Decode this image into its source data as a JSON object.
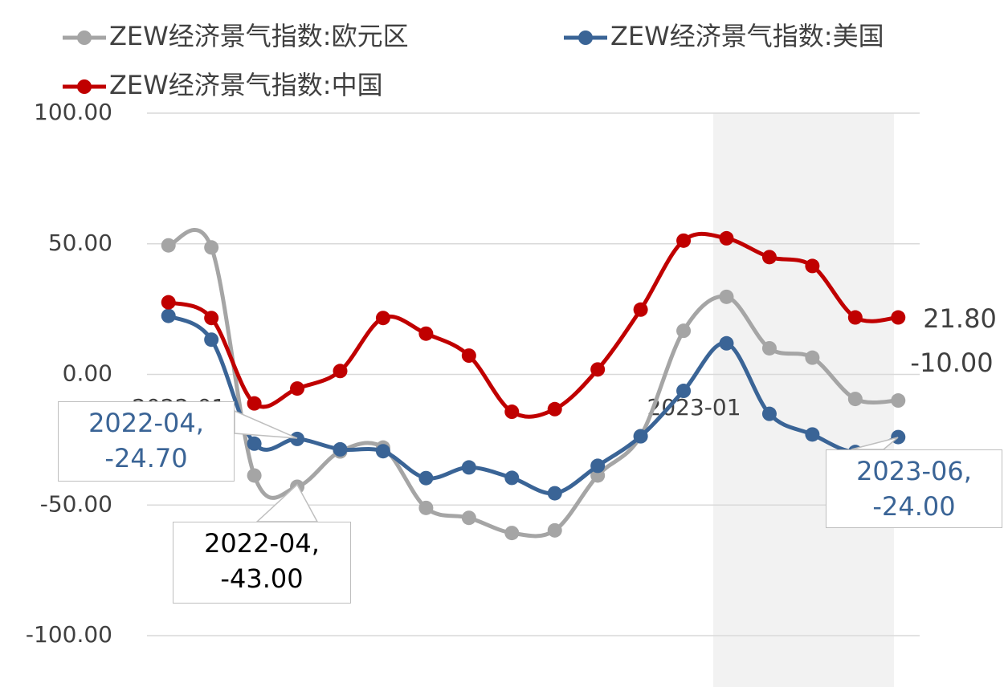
{
  "chart_data": {
    "type": "line",
    "categories": [
      "2022-01",
      null,
      null,
      null,
      null,
      null,
      null,
      null,
      null,
      null,
      null,
      null,
      "2023-01",
      null,
      null,
      null,
      null,
      null
    ],
    "series": [
      {
        "name": "ZEW经济景气指数:欧元区",
        "color": "#a5a5a5",
        "values": [
          49.4,
          48.6,
          -38.7,
          -43.0,
          -29.5,
          -28.0,
          -51.1,
          -54.9,
          -60.7,
          -59.7,
          -38.7,
          -23.6,
          16.7,
          29.7,
          10.0,
          6.4,
          -9.4,
          -10.0
        ],
        "value_labels": [
          null,
          null,
          null,
          "2022-04, -43.00",
          null,
          null,
          null,
          null,
          null,
          null,
          null,
          null,
          null,
          null,
          null,
          null,
          null,
          "-10.00"
        ]
      },
      {
        "name": "ZEW经济景气指数:美国",
        "color": "#3a6496",
        "values": [
          22.4,
          13.3,
          -26.5,
          -24.7,
          -28.7,
          -29.4,
          -39.7,
          -35.6,
          -39.6,
          -45.5,
          -35.0,
          -23.7,
          -6.3,
          11.9,
          -15.1,
          -23.0,
          -29.7,
          -24.0
        ],
        "value_labels": [
          null,
          null,
          null,
          "2022-04, -24.70",
          null,
          null,
          null,
          null,
          null,
          null,
          null,
          null,
          null,
          null,
          null,
          null,
          null,
          "2023-06, -24.00"
        ]
      },
      {
        "name": "ZEW经济景气指数:中国",
        "color": "#c00000",
        "values": [
          27.6,
          21.6,
          -11.1,
          -5.4,
          1.3,
          21.6,
          15.6,
          7.2,
          -14.3,
          -13.3,
          1.9,
          24.8,
          51.2,
          52.1,
          44.9,
          41.5,
          21.8,
          21.8
        ],
        "value_labels": [
          null,
          null,
          null,
          null,
          null,
          null,
          null,
          null,
          null,
          null,
          null,
          null,
          null,
          null,
          null,
          null,
          null,
          "21.80"
        ]
      }
    ],
    "ylim": [
      -100,
      100
    ],
    "yticks": [
      {
        "value": -100,
        "label": "-100.00"
      },
      {
        "value": -50,
        "label": "-50.00"
      },
      {
        "value": 0,
        "label": "0.00"
      },
      {
        "value": 50,
        "label": "50.00"
      },
      {
        "value": 100,
        "label": "100.00"
      }
    ],
    "grid": true
  }
}
